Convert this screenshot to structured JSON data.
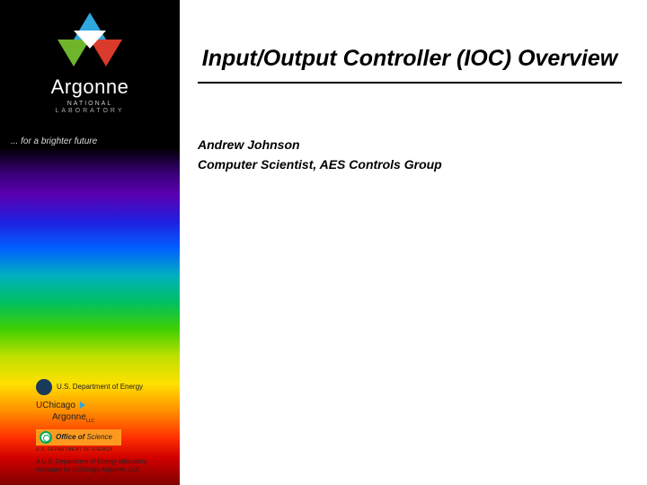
{
  "sidebar": {
    "org_name": "Argonne",
    "org_sub1": "NATIONAL",
    "org_sub2": "LABORATORY",
    "tagline": "... for a brighter future",
    "sponsors": {
      "doe": "U.S. Department of Energy",
      "uchicago_u": "U",
      "uchicago_rest": "Chicago",
      "argonne_small": "Argonne",
      "argonne_llc": "LLC",
      "office_line1": "Office of",
      "office_line2": "Science",
      "doe_tiny": "U.S. DEPARTMENT OF ENERGY"
    },
    "managed_line1": "A U.S. Department of Energy laboratory",
    "managed_line2": "managed by UChicago Argonne, LLC"
  },
  "main": {
    "title": "Input/Output Controller (IOC) Overview",
    "author": "Andrew Johnson",
    "role": "Computer Scientist, AES Controls Group"
  },
  "colors": {
    "background": "#ffffff",
    "sidebar_bg": "#000000",
    "text": "#000000",
    "triangle_blue": "#2fa8e0",
    "triangle_green": "#6fb52c",
    "triangle_red": "#d93a2b",
    "oos_bg": "#ff9a1f",
    "uchicago_maroon": "#7a0019"
  }
}
